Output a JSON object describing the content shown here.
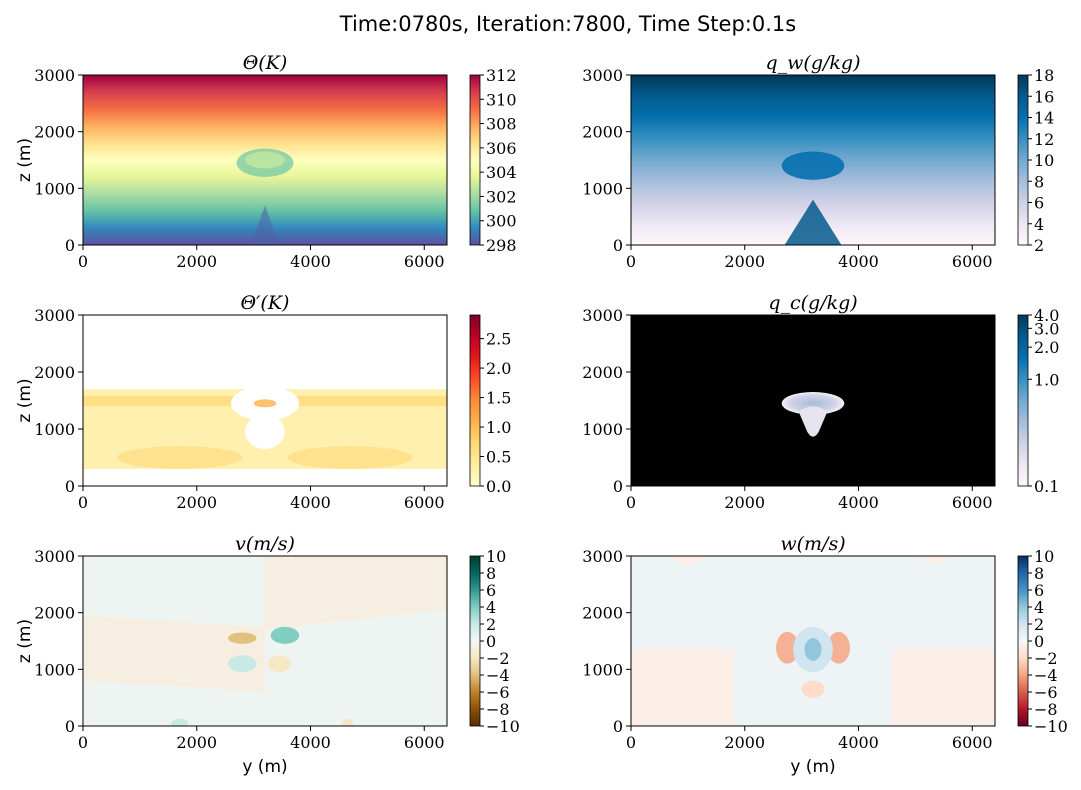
{
  "figure": {
    "title": "Time:0780s, Iteration:7800, Time Step:0.1s"
  },
  "chart_data": [
    {
      "type": "heatmap",
      "id": "theta",
      "title": "Θ(K)",
      "xlabel": "",
      "ylabel": "z (m)",
      "xlim": [
        0,
        6400
      ],
      "ylim": [
        0,
        3000
      ],
      "xticks": [
        "0",
        "2000",
        "4000",
        "6000"
      ],
      "yticks": [
        "0",
        "1000",
        "2000",
        "3000"
      ],
      "colorbar": {
        "range": [
          298,
          312
        ],
        "ticks": [
          "298",
          "300",
          "302",
          "304",
          "306",
          "308",
          "310",
          "312"
        ],
        "colormap": "Spectral_r"
      },
      "colors": [
        "#5e4fa2",
        "#3288bd",
        "#66c2a5",
        "#abdda4",
        "#e6f598",
        "#ffffbf",
        "#fee08b",
        "#fdae61",
        "#f46d43",
        "#d53e4f",
        "#9e0142"
      ]
    },
    {
      "type": "heatmap",
      "id": "qw",
      "title": "q_w(g/kg)",
      "xlabel": "",
      "ylabel": "",
      "xlim": [
        0,
        6400
      ],
      "ylim": [
        0,
        3000
      ],
      "xticks": [
        "0",
        "2000",
        "4000",
        "6000"
      ],
      "yticks": [
        "0",
        "1000",
        "2000",
        "3000"
      ],
      "colorbar": {
        "range": [
          2,
          18
        ],
        "ticks": [
          "2",
          "4",
          "6",
          "8",
          "10",
          "12",
          "14",
          "16",
          "18"
        ],
        "colormap": "PuBu"
      },
      "colors": [
        "#fff7fb",
        "#ece7f2",
        "#d0d1e6",
        "#a6bddb",
        "#74a9cf",
        "#3690c0",
        "#0570b0",
        "#045a8d",
        "#023858"
      ]
    },
    {
      "type": "heatmap",
      "id": "thetap",
      "title": "Θ′(K)",
      "xlabel": "",
      "ylabel": "z (m)",
      "xlim": [
        0,
        6400
      ],
      "ylim": [
        0,
        3000
      ],
      "xticks": [
        "0",
        "2000",
        "4000",
        "6000"
      ],
      "yticks": [
        "0",
        "1000",
        "2000",
        "3000"
      ],
      "colorbar": {
        "range": [
          0,
          2.9
        ],
        "ticks": [
          "0.0",
          "0.5",
          "1.0",
          "1.5",
          "2.0",
          "2.5"
        ],
        "colormap": "YlOrRd"
      },
      "colors": [
        "#ffffcc",
        "#ffeda0",
        "#fed976",
        "#feb24c",
        "#fd8d3c",
        "#fc4e2a",
        "#e31a1c",
        "#bd0026",
        "#800026"
      ]
    },
    {
      "type": "heatmap",
      "id": "qc",
      "title": "q_c(g/kg)",
      "xlabel": "",
      "ylabel": "",
      "xlim": [
        0,
        6400
      ],
      "ylim": [
        0,
        3000
      ],
      "xticks": [
        "0",
        "2000",
        "4000",
        "6000"
      ],
      "yticks": [
        "0",
        "1000",
        "2000",
        "3000"
      ],
      "colorbar": {
        "range": [
          0.1,
          4.0
        ],
        "ticks": [
          "0.1",
          "1.0",
          "2.0",
          "3.0",
          "4.0"
        ],
        "colormap": "PuBu",
        "scale": "log"
      },
      "colors": [
        "#fff7fb",
        "#ece7f2",
        "#d0d1e6",
        "#a6bddb",
        "#74a9cf",
        "#3690c0",
        "#0570b0",
        "#045a8d",
        "#023858"
      ],
      "background_color": "#000000"
    },
    {
      "type": "heatmap",
      "id": "v",
      "title": "v(m/s)",
      "xlabel": "y (m)",
      "ylabel": "z (m)",
      "xlim": [
        0,
        6400
      ],
      "ylim": [
        0,
        3000
      ],
      "xticks": [
        "0",
        "2000",
        "4000",
        "6000"
      ],
      "yticks": [
        "0",
        "1000",
        "2000",
        "3000"
      ],
      "colorbar": {
        "range": [
          -10,
          10
        ],
        "ticks": [
          "10",
          "8",
          "6",
          "4",
          "2",
          "0",
          "−2",
          "−4",
          "−6",
          "−8",
          "−10"
        ],
        "colormap": "BrBG"
      },
      "colors": [
        "#543005",
        "#8c510a",
        "#bf812d",
        "#dfc27d",
        "#f6e8c3",
        "#f5f5f5",
        "#c7eae5",
        "#80cdc1",
        "#35978f",
        "#01665e",
        "#003c30"
      ]
    },
    {
      "type": "heatmap",
      "id": "w",
      "title": "w(m/s)",
      "xlabel": "y (m)",
      "ylabel": "",
      "xlim": [
        0,
        6400
      ],
      "ylim": [
        0,
        3000
      ],
      "xticks": [
        "0",
        "2000",
        "4000",
        "6000"
      ],
      "yticks": [
        "0",
        "1000",
        "2000",
        "3000"
      ],
      "colorbar": {
        "range": [
          -10,
          10
        ],
        "ticks": [
          "10",
          "8",
          "6",
          "4",
          "2",
          "0",
          "−2",
          "−4",
          "−6",
          "−8",
          "−10"
        ],
        "colormap": "RdBu"
      },
      "colors": [
        "#67001f",
        "#b2182b",
        "#d6604d",
        "#f4a582",
        "#fddbc7",
        "#f7f7f7",
        "#d1e5f0",
        "#92c5de",
        "#4393c3",
        "#2166ac",
        "#053061"
      ]
    }
  ]
}
